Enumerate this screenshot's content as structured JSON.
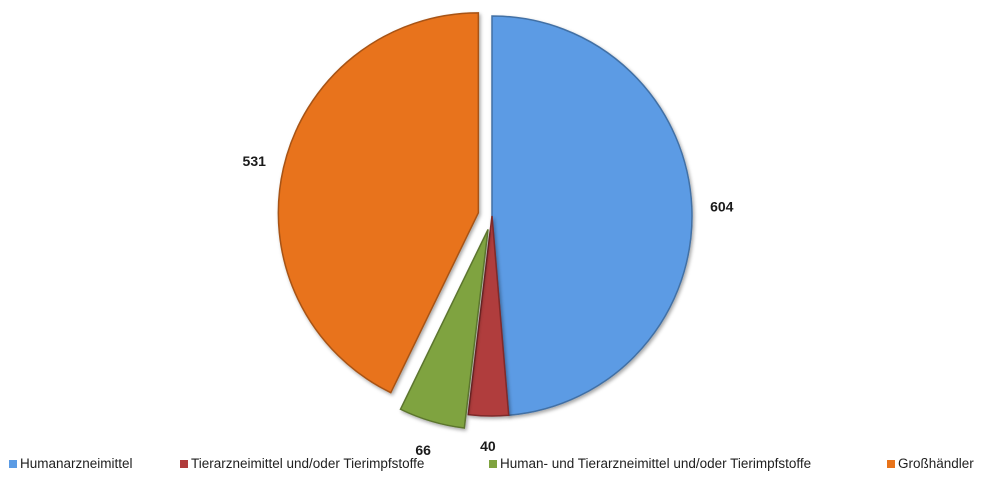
{
  "chart_data": {
    "type": "pie",
    "categories": [
      "Humanarzneimittel",
      "Tierarzneimittel und/oder Tierimpfstoffe",
      "Human- und Tierarzneimittel und/oder Tierimpfstoffe",
      "Großhändler"
    ],
    "values": [
      604,
      40,
      66,
      531
    ],
    "data_labels": [
      "604",
      "40",
      "66",
      "531"
    ],
    "colors": [
      "#5B9BE4",
      "#B03C3C",
      "#7FA33F",
      "#E8731A"
    ],
    "exploded": [
      false,
      false,
      true,
      true
    ],
    "legend_position": "bottom",
    "title": ""
  }
}
